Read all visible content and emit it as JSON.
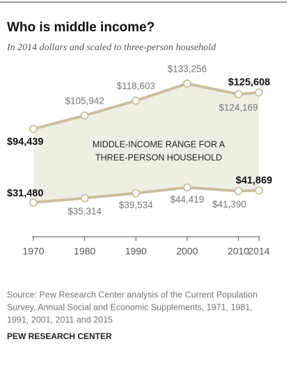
{
  "chart_data": {
    "type": "band-line",
    "title": "Who is middle income?",
    "subtitle": "In 2014 dollars and scaled to three-person household",
    "annotation": [
      "MIDDLE-INCOME RANGE FOR A",
      "THREE-PERSON HOUSEHOLD"
    ],
    "x": [
      1970,
      1980,
      1990,
      2000,
      2010,
      2014
    ],
    "xlim": [
      1970,
      2014
    ],
    "xticks": [
      1970,
      1980,
      1990,
      2000,
      2010,
      2014
    ],
    "area_color": "#efeee3",
    "series": [
      {
        "name": "Upper",
        "color": "#c9bf9f",
        "values": [
          94439,
          105942,
          118603,
          133256,
          124169,
          125608
        ],
        "value_labels": [
          "$94,439",
          "$105,942",
          "$118,603",
          "$133,256",
          "$124,169",
          "$125,608"
        ]
      },
      {
        "name": "Lower",
        "color": "#c9bf9f",
        "values": [
          31480,
          35314,
          39534,
          44419,
          41390,
          41869
        ],
        "value_labels": [
          "$31,480",
          "$35,314",
          "$39,534",
          "$44,419",
          "$41,390",
          "$41,869"
        ]
      }
    ],
    "source": [
      "Source: Pew Research Center analysis of the Current Population",
      "Survey, Annual Social and Economic Supplements, 1971, 1981,",
      "1991, 2001, 2011 and 2015"
    ],
    "credit": "PEW RESEARCH CENTER"
  }
}
